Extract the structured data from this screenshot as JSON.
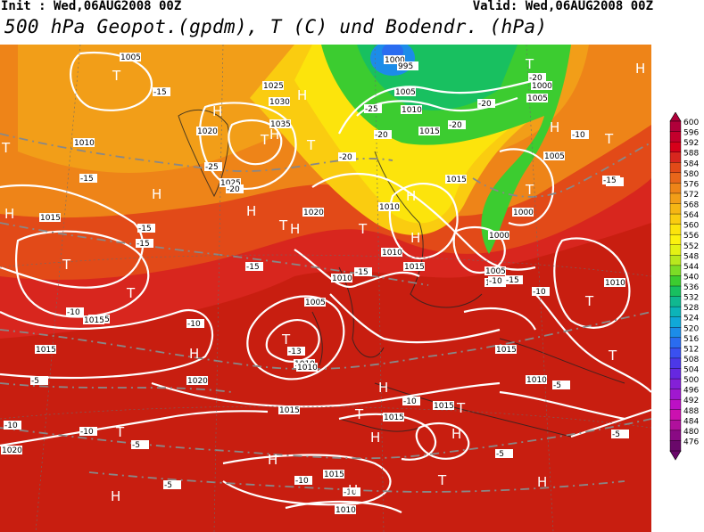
{
  "header": {
    "init": "Init : Wed,06AUG2008 00Z",
    "valid": "Valid: Wed,06AUG2008 00Z",
    "title": "500 hPa Geopot.(gpdm), T (C) und Bodendr. (hPa)"
  },
  "colorbar": {
    "values": [
      "600",
      "596",
      "592",
      "588",
      "584",
      "580",
      "576",
      "572",
      "568",
      "564",
      "560",
      "556",
      "552",
      "548",
      "544",
      "540",
      "536",
      "532",
      "528",
      "524",
      "520",
      "516",
      "512",
      "508",
      "504",
      "500",
      "496",
      "492",
      "488",
      "484",
      "480",
      "476"
    ],
    "colors": [
      "#b0003a",
      "#c4002c",
      "#d6001a",
      "#d8261e",
      "#e24a18",
      "#e8661a",
      "#ee8418",
      "#f29e18",
      "#f6b614",
      "#facc10",
      "#fce40c",
      "#fcf20e",
      "#e4f214",
      "#b8e81e",
      "#7cdc26",
      "#3ccc30",
      "#18c060",
      "#10b890",
      "#0cb4b8",
      "#10a8d8",
      "#1c8ce8",
      "#2a6cf0",
      "#3a50f0",
      "#4c38e8",
      "#6628e0",
      "#8420d8",
      "#a018d0",
      "#bc10c4",
      "#cc10b0",
      "#b0109c",
      "#8a0a84",
      "#6a086a"
    ]
  },
  "map": {
    "pressure_labels": [
      "1005",
      "1025",
      "1030",
      "1035",
      "1020",
      "1025",
      "1010",
      "1015",
      "1010",
      "1020",
      "1010",
      "1000",
      "1005",
      "1010",
      "1015",
      "1020",
      "1015",
      "1015",
      "1015",
      "1010",
      "995",
      "1000",
      "1005",
      "1010",
      "1000",
      "1005",
      "1005",
      "1015",
      "1015",
      "1000",
      "1005",
      "1010",
      "1015",
      "1010",
      "1010",
      "1010",
      "1010",
      "1015",
      "1015",
      "1020",
      "1015",
      "1015",
      "1010"
    ],
    "temperature_labels": [
      "-15",
      "-15",
      "-15",
      "-25",
      "-20",
      "-20",
      "-15",
      "-15",
      "-15",
      "-10",
      "-13",
      "-10",
      "-10",
      "-10",
      "-5",
      "-5",
      "-5",
      "-10",
      "-10",
      "-5",
      "-20",
      "-25",
      "-20",
      "-20",
      "-20",
      "-10",
      "-10",
      "-15",
      "-10",
      "-15",
      "-10",
      "-5",
      "-10",
      "-5"
    ],
    "highs": [
      "H",
      "H",
      "H",
      "H",
      "H",
      "H",
      "H",
      "H",
      "H",
      "H",
      "H",
      "H",
      "H",
      "H",
      "H",
      "H",
      "H",
      "H",
      "H"
    ],
    "lows": [
      "T",
      "T",
      "T",
      "T",
      "T",
      "T",
      "T",
      "T",
      "T",
      "T",
      "T",
      "T",
      "T",
      "T",
      "T",
      "T",
      "T",
      "T"
    ]
  }
}
